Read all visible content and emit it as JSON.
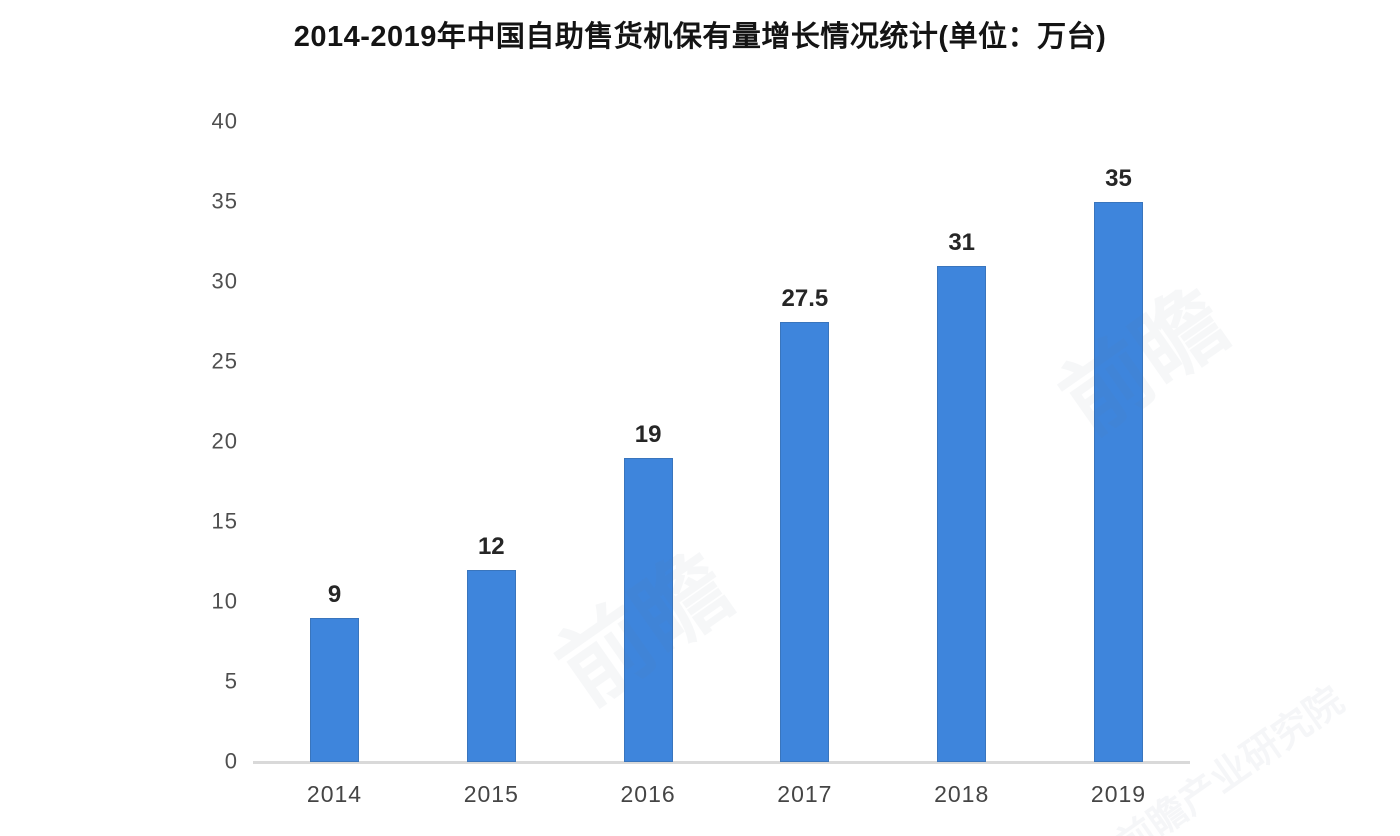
{
  "chart_data": {
    "type": "bar",
    "title": "2014-2019年中国自助售货机保有量增长情况统计(单位：万台)",
    "categories": [
      "2014",
      "2015",
      "2016",
      "2017",
      "2018",
      "2019"
    ],
    "values": [
      9,
      12,
      19,
      27.5,
      31,
      35
    ],
    "value_labels": [
      "9",
      "12",
      "19",
      "27.5",
      "31",
      "35"
    ],
    "xlabel": "",
    "ylabel": "",
    "ylim": [
      0,
      40
    ],
    "y_ticks": [
      0,
      5,
      10,
      15,
      20,
      25,
      30,
      35,
      40
    ],
    "grid": false,
    "legend": false,
    "bar_color": "#3e85dc",
    "axis_line_color": "#d9d9d9",
    "title_color": "#141414",
    "value_label_color": "#262626",
    "tick_label_color": "#4f4f4f"
  },
  "watermarks": [
    {
      "text": "前瞻"
    },
    {
      "text": "前瞻"
    },
    {
      "text": "前瞻产业研究院"
    }
  ]
}
